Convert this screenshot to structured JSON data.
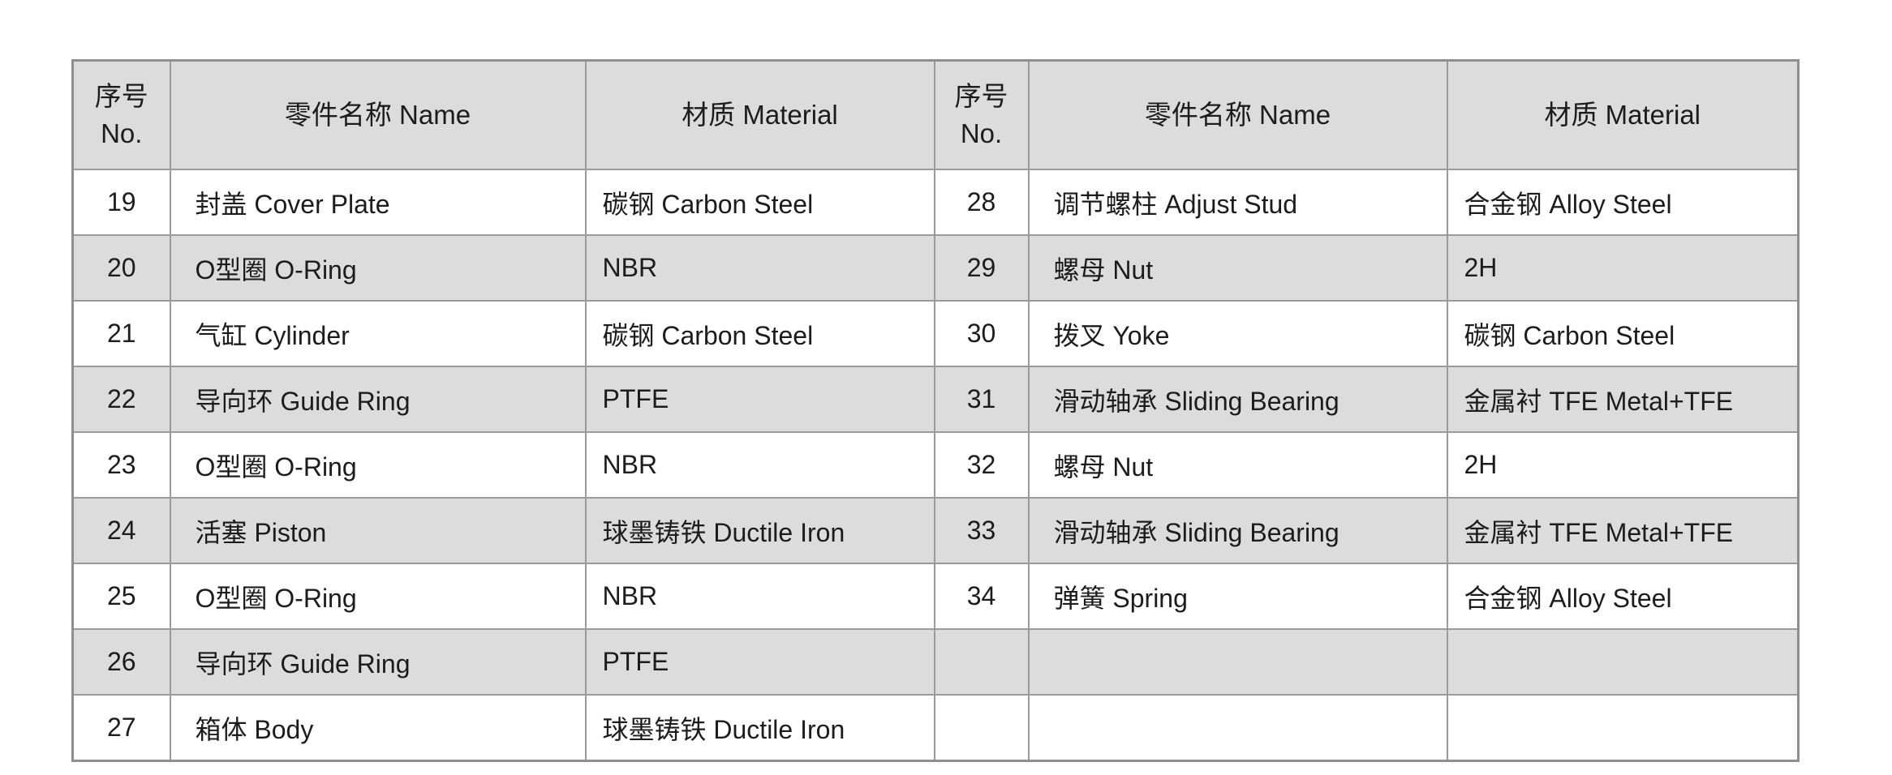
{
  "table": {
    "headers": {
      "no_zh": "序号",
      "no_en": "No.",
      "name": "零件名称 Name",
      "material": "材质 Material"
    },
    "left_rows": [
      {
        "no": "19",
        "name": "封盖 Cover Plate",
        "material": "碳钢 Carbon Steel"
      },
      {
        "no": "20",
        "name": "O型圈 O-Ring",
        "material": "NBR"
      },
      {
        "no": "21",
        "name": "气缸 Cylinder",
        "material": "碳钢 Carbon Steel"
      },
      {
        "no": "22",
        "name": "导向环 Guide Ring",
        "material": "PTFE"
      },
      {
        "no": "23",
        "name": "O型圈 O-Ring",
        "material": "NBR"
      },
      {
        "no": "24",
        "name": "活塞 Piston",
        "material": "球墨铸铁 Ductile Iron"
      },
      {
        "no": "25",
        "name": "O型圈 O-Ring",
        "material": "NBR"
      },
      {
        "no": "26",
        "name": "导向环 Guide Ring",
        "material": "PTFE"
      },
      {
        "no": "27",
        "name": "箱体 Body",
        "material": "球墨铸铁 Ductile Iron"
      }
    ],
    "right_rows": [
      {
        "no": "28",
        "name": "调节螺柱 Adjust Stud",
        "material": "合金钢 Alloy Steel"
      },
      {
        "no": "29",
        "name": "螺母 Nut",
        "material": "2H"
      },
      {
        "no": "30",
        "name": "拨叉 Yoke",
        "material": "碳钢 Carbon Steel"
      },
      {
        "no": "31",
        "name": "滑动轴承 Sliding Bearing",
        "material": "金属衬 TFE Metal+TFE"
      },
      {
        "no": "32",
        "name": "螺母 Nut",
        "material": "2H"
      },
      {
        "no": "33",
        "name": "滑动轴承 Sliding Bearing",
        "material": "金属衬 TFE Metal+TFE"
      },
      {
        "no": "34",
        "name": "弹簧 Spring",
        "material": "合金钢 Alloy Steel"
      },
      {
        "no": "",
        "name": "",
        "material": ""
      },
      {
        "no": "",
        "name": "",
        "material": ""
      }
    ]
  },
  "colors": {
    "header_bg": "#dcdcdc",
    "stripe_bg": "#dcdcdc",
    "row_bg": "#ffffff",
    "border": "#9a9a9a",
    "text": "#1c1c1c"
  }
}
